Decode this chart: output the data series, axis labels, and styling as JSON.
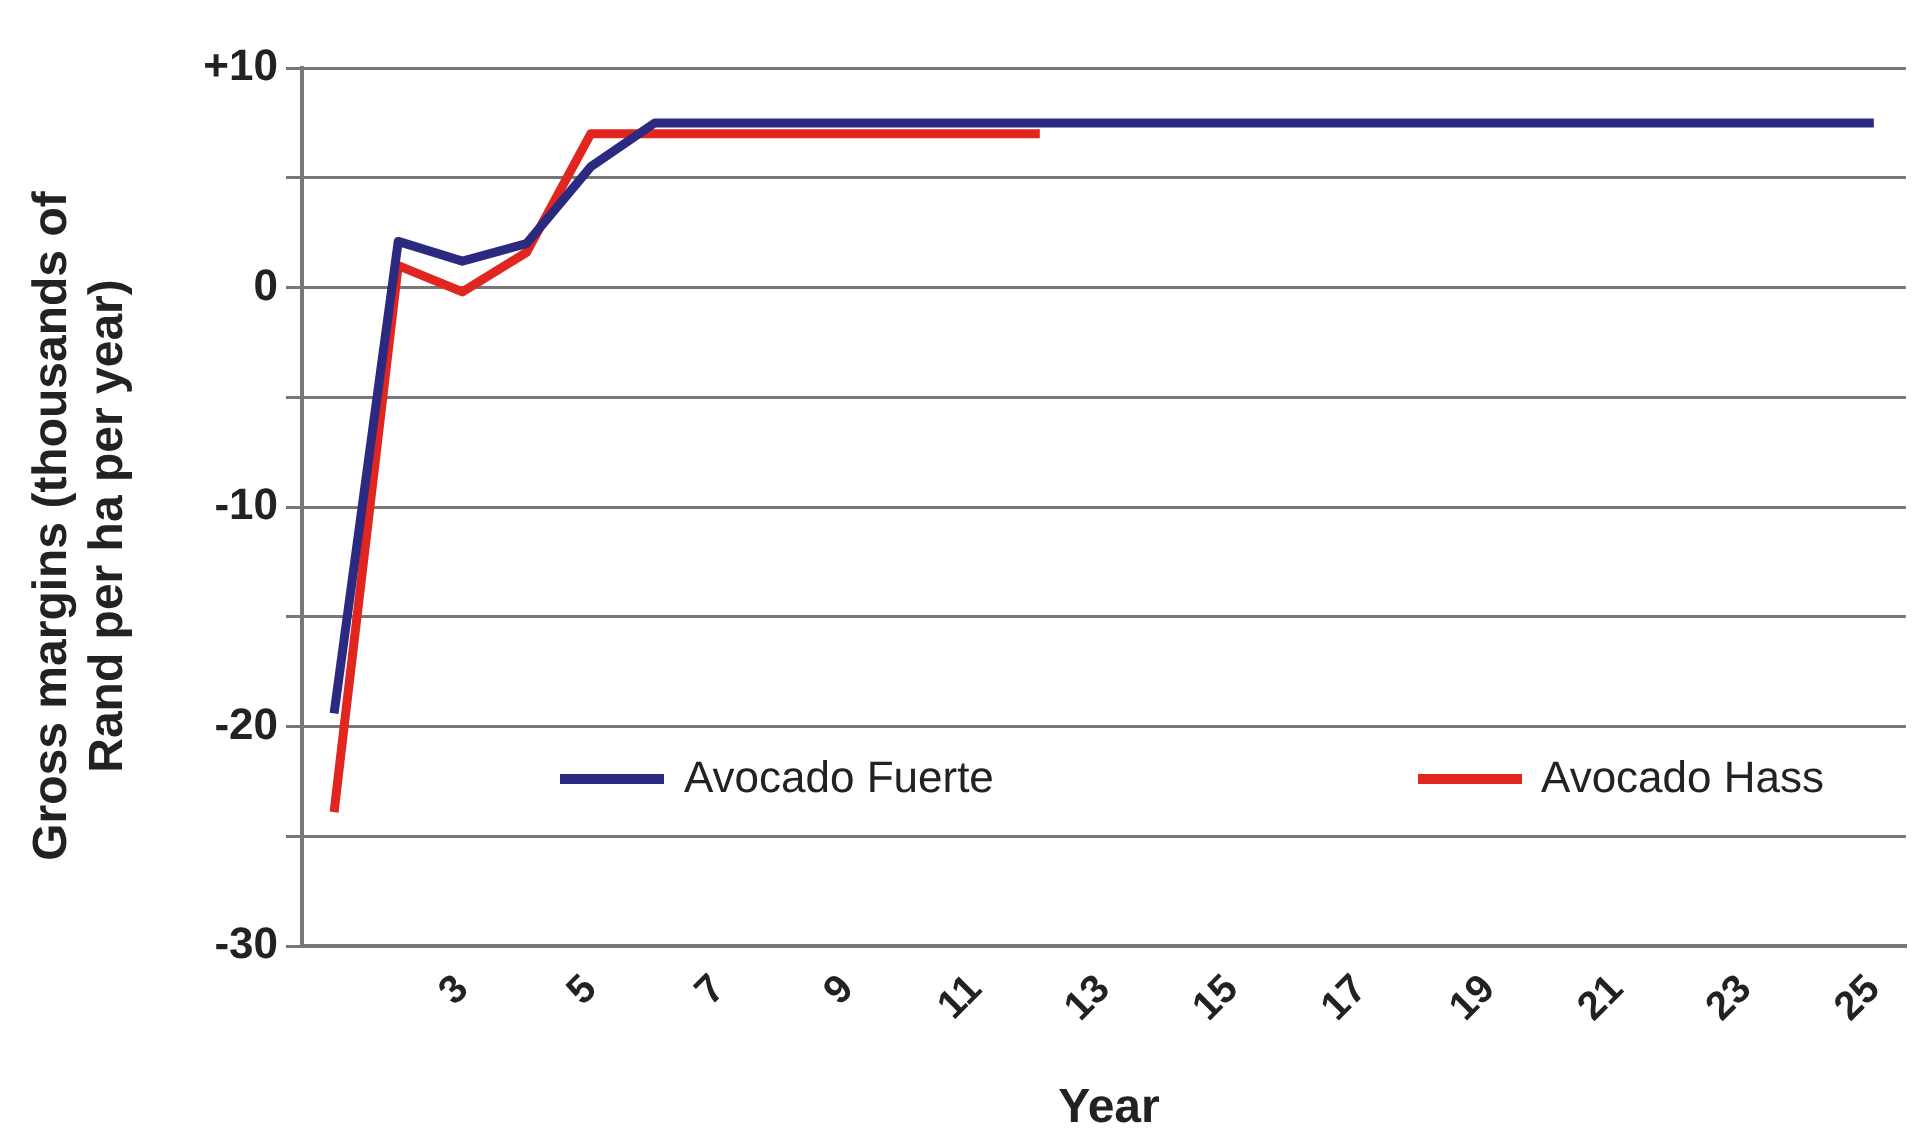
{
  "chart_data": {
    "type": "line",
    "xlabel": "Year",
    "ylabel": "Gross margins (thousands of Rand per ha per year)",
    "categories": [
      null,
      null,
      "3",
      null,
      "5",
      null,
      "7",
      null,
      "9",
      null,
      "11",
      null,
      "13",
      null,
      "15",
      null,
      "17",
      null,
      "19",
      null,
      "21",
      null,
      "23",
      null,
      "25"
    ],
    "series": [
      {
        "name": "Avocado Fuerte",
        "color": "#2b2a80",
        "values": [
          -19.4,
          2.1,
          1.2,
          2.0,
          5.5,
          7.5,
          7.5,
          7.5,
          7.5,
          7.5,
          7.5,
          7.5,
          7.5,
          7.5,
          7.5,
          7.5,
          7.5,
          7.5,
          7.5,
          7.5,
          7.5,
          7.5,
          7.5,
          7.5,
          7.5
        ]
      },
      {
        "name": "Avocado Hass",
        "color": "#e0261e",
        "values": [
          -23.9,
          1.0,
          -0.2,
          1.6,
          7.0,
          7.0,
          7.0,
          7.0,
          7.0,
          7.0,
          7.0,
          7.0,
          null,
          null,
          null,
          null,
          null,
          null,
          null,
          null,
          null,
          null,
          null,
          null,
          null
        ]
      }
    ],
    "ylim": [
      -30,
      10
    ],
    "yticks": [
      {
        "value": 10,
        "label": "+10"
      },
      {
        "value": 5,
        "label": null
      },
      0,
      {
        "value": -5,
        "label": null
      },
      -10,
      {
        "value": -15,
        "label": null
      },
      -20,
      {
        "value": -25,
        "label": null
      },
      -30
    ],
    "grid": "y",
    "legend": "bottom",
    "marker": "none",
    "line_style": "solid"
  }
}
